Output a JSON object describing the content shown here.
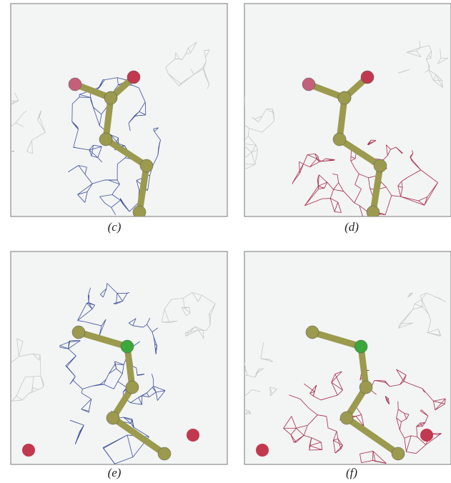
{
  "figure": {
    "panels": [
      {
        "label": "(c)"
      },
      {
        "label": "(d)"
      },
      {
        "label": "(e)"
      },
      {
        "label": "(f)"
      }
    ]
  }
}
